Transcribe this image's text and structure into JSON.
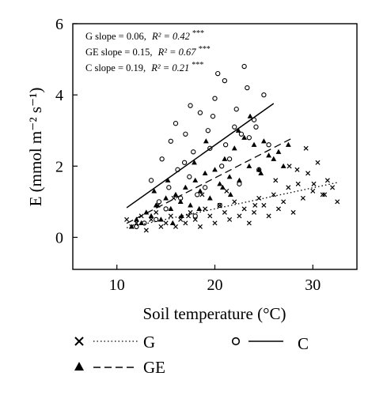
{
  "chart_data": {
    "type": "scatter",
    "title": "",
    "xlabel": "Soil temperature (°C)",
    "ylabel": "E (mmol m⁻² s⁻¹)",
    "xlim": [
      5.5,
      34.5
    ],
    "ylim": [
      -0.9,
      6.0
    ],
    "x_ticks": [
      "10",
      "20",
      "30"
    ],
    "x_tick_values": [
      10,
      20,
      30
    ],
    "y_ticks": [
      "0",
      "2",
      "4",
      "6"
    ],
    "y_tick_values": [
      0,
      2,
      4,
      6
    ],
    "grid": false,
    "legend_position": "bottom",
    "annotations": [
      {
        "label": "G slope = 0.06,",
        "r2": "R² = 0.42",
        "sig": "***"
      },
      {
        "label": "GE slope = 0.15,",
        "r2": "R² = 0.67",
        "sig": "***"
      },
      {
        "label": "C slope = 0.19,",
        "r2": "R² = 0.21",
        "sig": "***"
      }
    ],
    "series": [
      {
        "name": "G",
        "marker": "x",
        "line_style": "dotted",
        "slope": 0.06,
        "r2": 0.42,
        "fit_x": [
          11.0,
          32.5
        ],
        "x": [
          11.0,
          11.5,
          12.0,
          12.5,
          13.0,
          13.5,
          14.0,
          14.5,
          15.0,
          15.5,
          16.0,
          16.5,
          17.0,
          17.5,
          18.0,
          18.5,
          19.0,
          19.5,
          20.0,
          20.5,
          21.0,
          21.5,
          22.0,
          22.5,
          23.0,
          23.5,
          24.0,
          24.5,
          25.0,
          25.5,
          26.0,
          26.5,
          27.0,
          27.5,
          28.0,
          28.5,
          29.0,
          29.5,
          30.0,
          30.5,
          31.0,
          31.5,
          32.0,
          32.5,
          14.2,
          15.8,
          17.3,
          18.7,
          21.2,
          24.1,
          26.2,
          27.6,
          29.3,
          31.2,
          28.4,
          30.1
        ],
        "y": [
          0.5,
          0.3,
          0.4,
          0.6,
          0.2,
          0.5,
          0.7,
          0.3,
          0.4,
          0.6,
          0.3,
          0.5,
          0.4,
          0.7,
          0.5,
          0.3,
          0.8,
          0.6,
          0.4,
          0.9,
          0.7,
          0.5,
          1.0,
          0.6,
          0.8,
          0.4,
          0.7,
          1.1,
          0.9,
          0.6,
          1.2,
          0.8,
          1.0,
          1.4,
          0.7,
          1.5,
          1.1,
          1.8,
          1.3,
          2.1,
          1.2,
          1.6,
          1.4,
          1.0,
          0.9,
          1.1,
          0.6,
          1.2,
          1.3,
          0.9,
          1.6,
          2.0,
          2.5,
          1.2,
          1.9,
          1.5
        ]
      },
      {
        "name": "GE",
        "marker": "triangle",
        "line_style": "dashed",
        "slope": 0.15,
        "r2": 0.67,
        "fit_x": [
          11.0,
          28.0
        ],
        "x": [
          11.5,
          12.0,
          12.5,
          13.0,
          13.5,
          14.0,
          14.5,
          15.0,
          15.5,
          16.0,
          16.5,
          17.0,
          17.5,
          18.0,
          18.5,
          19.0,
          19.5,
          20.0,
          20.5,
          21.0,
          21.5,
          22.0,
          22.5,
          23.0,
          23.5,
          24.0,
          24.5,
          25.0,
          25.5,
          26.0,
          26.5,
          27.0,
          27.5,
          13.8,
          15.2,
          16.6,
          17.9,
          19.1,
          20.8,
          22.4,
          23.6,
          24.7,
          15.7,
          18.4,
          21.6
        ],
        "y": [
          0.3,
          0.5,
          0.4,
          0.7,
          0.6,
          0.9,
          0.5,
          1.1,
          0.8,
          1.2,
          1.0,
          1.4,
          0.9,
          1.6,
          1.3,
          1.8,
          1.1,
          1.9,
          1.5,
          2.2,
          1.7,
          2.5,
          1.6,
          2.8,
          2.0,
          2.6,
          1.9,
          2.7,
          2.3,
          2.2,
          2.4,
          2.0,
          2.6,
          1.3,
          1.6,
          0.6,
          2.1,
          2.7,
          1.4,
          3.0,
          3.4,
          1.8,
          0.4,
          0.8,
          1.2
        ]
      },
      {
        "name": "C",
        "marker": "circle",
        "line_style": "solid",
        "slope": 0.19,
        "r2": 0.21,
        "fit_x": [
          11.0,
          26.0
        ],
        "x": [
          12.0,
          12.8,
          13.5,
          14.0,
          14.6,
          15.0,
          15.5,
          16.0,
          16.5,
          17.0,
          17.5,
          18.0,
          18.5,
          19.0,
          19.5,
          20.0,
          20.5,
          21.0,
          21.5,
          22.0,
          22.5,
          23.0,
          23.5,
          24.0,
          24.5,
          25.0,
          25.5,
          16.2,
          17.8,
          19.3,
          20.7,
          22.2,
          23.3,
          18.2,
          21.1,
          15.3,
          16.9,
          19.8,
          22.7,
          24.2,
          14.3,
          17.4,
          20.3
        ],
        "y": [
          0.3,
          0.4,
          1.6,
          0.5,
          2.2,
          0.8,
          2.7,
          3.2,
          1.1,
          2.9,
          3.7,
          0.6,
          3.5,
          1.4,
          2.5,
          3.9,
          0.9,
          4.4,
          2.2,
          3.1,
          1.5,
          4.8,
          2.8,
          3.3,
          1.9,
          4.0,
          2.6,
          1.9,
          2.4,
          3.0,
          2.0,
          3.6,
          4.2,
          1.2,
          2.6,
          1.4,
          2.1,
          3.4,
          2.9,
          3.1,
          1.0,
          1.7,
          4.6
        ]
      }
    ]
  }
}
